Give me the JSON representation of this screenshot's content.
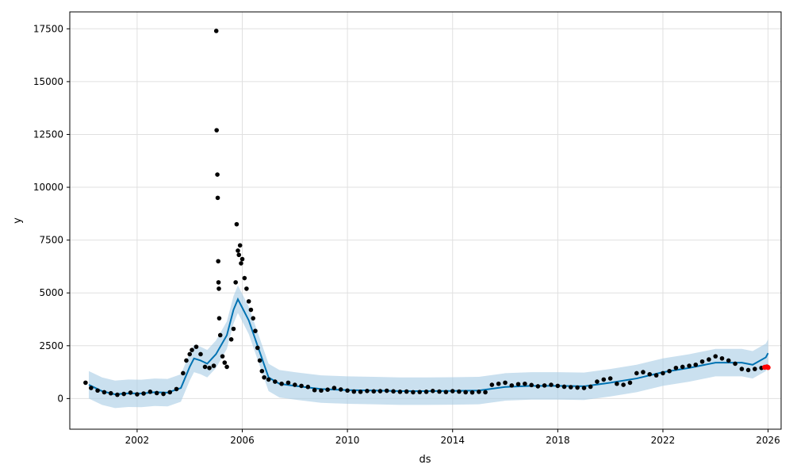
{
  "chart_data": {
    "type": "line",
    "title": "",
    "xlabel": "ds",
    "ylabel": "y",
    "xlim": [
      "1999-06-10",
      "2026-07-01"
    ],
    "ylim": [
      -1450,
      18300
    ],
    "grid": true,
    "x_ticks": [
      "2002",
      "2006",
      "2010",
      "2014",
      "2018",
      "2022",
      "2026"
    ],
    "y_ticks": [
      0,
      2500,
      5000,
      7500,
      10000,
      12500,
      15000,
      17500
    ],
    "y_tick_labels": [
      "0",
      "2500",
      "5000",
      "7500",
      "10000",
      "12500",
      "15000",
      "17500"
    ],
    "colors": {
      "observed": "#000000",
      "forecast": "#0072B2",
      "interval": "#a6cbe4",
      "highlight": "#ff0000",
      "grid": "#e0e0e0"
    },
    "series": [
      {
        "values": [
          [
            "2000-03-01",
            650
          ],
          [
            "2000-09-01",
            350
          ],
          [
            "2001-03-01",
            200
          ],
          [
            "2001-09-01",
            250
          ],
          [
            "2002-03-01",
            240
          ],
          [
            "2002-09-01",
            300
          ],
          [
            "2003-03-01",
            280
          ],
          [
            "2003-09-01",
            500
          ],
          [
            "2004-01-01",
            1500
          ],
          [
            "2004-03-01",
            1900
          ],
          [
            "2004-06-01",
            1800
          ],
          [
            "2004-09-01",
            1650
          ],
          [
            "2005-01-01",
            2100
          ],
          [
            "2005-06-01",
            3000
          ],
          [
            "2005-09-01",
            4200
          ],
          [
            "2005-11-01",
            4700
          ],
          [
            "2006-01-01",
            4300
          ],
          [
            "2006-04-01",
            3700
          ],
          [
            "2006-08-01",
            2500
          ],
          [
            "2007-01-01",
            1000
          ],
          [
            "2007-06-01",
            700
          ],
          [
            "2008-01-01",
            600
          ],
          [
            "2009-01-01",
            450
          ],
          [
            "2010-01-01",
            400
          ],
          [
            "2011-01-01",
            380
          ],
          [
            "2012-01-01",
            350
          ],
          [
            "2013-01-01",
            350
          ],
          [
            "2014-01-01",
            360
          ],
          [
            "2015-01-01",
            380
          ],
          [
            "2016-01-01",
            550
          ],
          [
            "2017-01-01",
            600
          ],
          [
            "2018-01-01",
            600
          ],
          [
            "2019-01-01",
            580
          ],
          [
            "2020-01-01",
            750
          ],
          [
            "2021-01-01",
            950
          ],
          [
            "2022-01-01",
            1250
          ],
          [
            "2023-01-01",
            1450
          ],
          [
            "2024-01-01",
            1700
          ],
          [
            "2025-01-01",
            1700
          ],
          [
            "2025-06-01",
            1600
          ],
          [
            "2025-12-01",
            1950
          ],
          [
            "2026-01-01",
            2150
          ]
        ],
        "interval_halfwidth": 650
      },
      {
        "points": [
          [
            "2000-01-15",
            750
          ],
          [
            "2000-04-01",
            500
          ],
          [
            "2000-07-01",
            380
          ],
          [
            "2000-10-01",
            300
          ],
          [
            "2001-01-01",
            250
          ],
          [
            "2001-04-01",
            180
          ],
          [
            "2001-07-01",
            220
          ],
          [
            "2001-10-01",
            280
          ],
          [
            "2002-01-01",
            200
          ],
          [
            "2002-04-01",
            240
          ],
          [
            "2002-07-01",
            320
          ],
          [
            "2002-10-01",
            260
          ],
          [
            "2003-01-01",
            220
          ],
          [
            "2003-04-01",
            300
          ],
          [
            "2003-07-01",
            450
          ],
          [
            "2003-10-01",
            1200
          ],
          [
            "2003-11-15",
            1800
          ],
          [
            "2004-01-01",
            2100
          ],
          [
            "2004-02-01",
            2300
          ],
          [
            "2004-04-01",
            2450
          ],
          [
            "2004-06-01",
            2100
          ],
          [
            "2004-08-01",
            1500
          ],
          [
            "2004-10-01",
            1450
          ],
          [
            "2004-12-01",
            1550
          ],
          [
            "2005-01-05",
            17400
          ],
          [
            "2005-01-10",
            12700
          ],
          [
            "2005-01-20",
            10600
          ],
          [
            "2005-01-25",
            9500
          ],
          [
            "2005-02-01",
            6500
          ],
          [
            "2005-02-05",
            5500
          ],
          [
            "2005-02-10",
            5200
          ],
          [
            "2005-02-15",
            3800
          ],
          [
            "2005-03-01",
            3000
          ],
          [
            "2005-04-01",
            2000
          ],
          [
            "2005-05-01",
            1700
          ],
          [
            "2005-06-01",
            1500
          ],
          [
            "2005-08-01",
            2800
          ],
          [
            "2005-09-01",
            3300
          ],
          [
            "2005-10-01",
            5500
          ],
          [
            "2005-10-15",
            8250
          ],
          [
            "2005-11-01",
            7000
          ],
          [
            "2005-11-15",
            6800
          ],
          [
            "2005-12-01",
            7250
          ],
          [
            "2005-12-15",
            6400
          ],
          [
            "2006-01-01",
            6600
          ],
          [
            "2006-02-01",
            5700
          ],
          [
            "2006-03-01",
            5200
          ],
          [
            "2006-04-01",
            4600
          ],
          [
            "2006-05-01",
            4200
          ],
          [
            "2006-06-01",
            3800
          ],
          [
            "2006-07-01",
            3200
          ],
          [
            "2006-08-01",
            2400
          ],
          [
            "2006-09-01",
            1800
          ],
          [
            "2006-10-01",
            1300
          ],
          [
            "2006-11-01",
            1000
          ],
          [
            "2007-01-01",
            900
          ],
          [
            "2007-04-01",
            800
          ],
          [
            "2007-07-01",
            700
          ],
          [
            "2007-10-01",
            750
          ],
          [
            "2008-01-01",
            650
          ],
          [
            "2008-04-01",
            600
          ],
          [
            "2008-07-01",
            550
          ],
          [
            "2008-10-01",
            400
          ],
          [
            "2009-01-01",
            380
          ],
          [
            "2009-04-01",
            420
          ],
          [
            "2009-07-01",
            500
          ],
          [
            "2009-10-01",
            430
          ],
          [
            "2010-01-01",
            380
          ],
          [
            "2010-04-01",
            330
          ],
          [
            "2010-07-01",
            320
          ],
          [
            "2010-10-01",
            360
          ],
          [
            "2011-01-01",
            340
          ],
          [
            "2011-04-01",
            350
          ],
          [
            "2011-07-01",
            370
          ],
          [
            "2011-10-01",
            340
          ],
          [
            "2012-01-01",
            320
          ],
          [
            "2012-04-01",
            330
          ],
          [
            "2012-07-01",
            300
          ],
          [
            "2012-10-01",
            310
          ],
          [
            "2013-01-01",
            320
          ],
          [
            "2013-04-01",
            360
          ],
          [
            "2013-07-01",
            330
          ],
          [
            "2013-10-01",
            310
          ],
          [
            "2014-01-01",
            350
          ],
          [
            "2014-04-01",
            330
          ],
          [
            "2014-07-01",
            300
          ],
          [
            "2014-10-01",
            290
          ],
          [
            "2015-01-01",
            320
          ],
          [
            "2015-04-01",
            300
          ],
          [
            "2015-07-01",
            650
          ],
          [
            "2015-10-01",
            700
          ],
          [
            "2016-01-01",
            750
          ],
          [
            "2016-04-01",
            620
          ],
          [
            "2016-07-01",
            680
          ],
          [
            "2016-10-01",
            700
          ],
          [
            "2017-01-01",
            640
          ],
          [
            "2017-04-01",
            580
          ],
          [
            "2017-07-01",
            620
          ],
          [
            "2017-10-01",
            650
          ],
          [
            "2018-01-01",
            600
          ],
          [
            "2018-04-01",
            560
          ],
          [
            "2018-07-01",
            540
          ],
          [
            "2018-10-01",
            520
          ],
          [
            "2019-01-01",
            500
          ],
          [
            "2019-04-01",
            560
          ],
          [
            "2019-07-01",
            800
          ],
          [
            "2019-10-01",
            900
          ],
          [
            "2020-01-01",
            950
          ],
          [
            "2020-04-01",
            700
          ],
          [
            "2020-07-01",
            650
          ],
          [
            "2020-10-01",
            750
          ],
          [
            "2021-01-01",
            1200
          ],
          [
            "2021-04-01",
            1250
          ],
          [
            "2021-07-01",
            1150
          ],
          [
            "2021-10-01",
            1100
          ],
          [
            "2022-01-01",
            1200
          ],
          [
            "2022-04-01",
            1300
          ],
          [
            "2022-07-01",
            1450
          ],
          [
            "2022-10-01",
            1500
          ],
          [
            "2023-01-01",
            1550
          ],
          [
            "2023-04-01",
            1600
          ],
          [
            "2023-07-01",
            1750
          ],
          [
            "2023-10-01",
            1850
          ],
          [
            "2024-01-01",
            2000
          ],
          [
            "2024-04-01",
            1900
          ],
          [
            "2024-07-01",
            1800
          ],
          [
            "2024-10-01",
            1650
          ],
          [
            "2025-01-01",
            1400
          ],
          [
            "2025-04-01",
            1350
          ],
          [
            "2025-07-01",
            1400
          ],
          [
            "2025-10-01",
            1450
          ]
        ]
      },
      {
        "points": [
          [
            "2025-11-15",
            1480
          ],
          [
            "2025-12-15",
            1500
          ],
          [
            "2026-01-01",
            1470
          ]
        ]
      }
    ]
  }
}
